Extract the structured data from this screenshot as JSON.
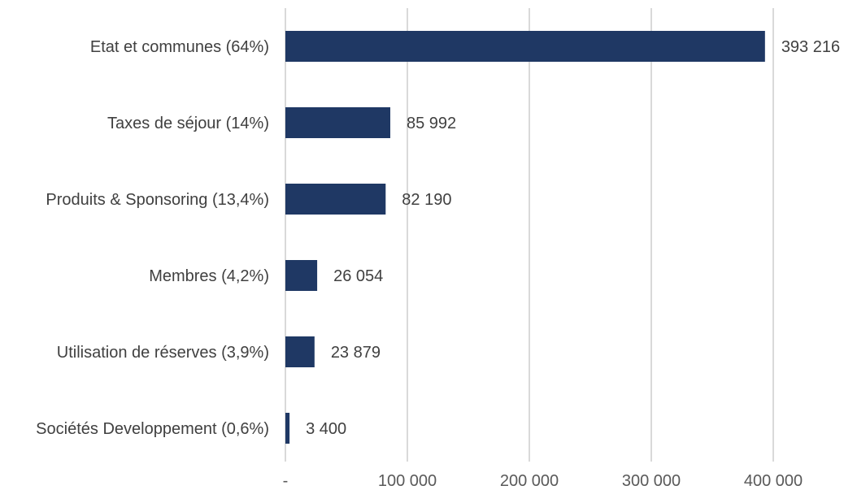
{
  "chart_data": {
    "type": "bar",
    "orientation": "horizontal",
    "categories": [
      "Etat et communes (64%)",
      "Taxes de séjour (14%)",
      "Produits & Sponsoring (13,4%)",
      "Membres (4,2%)",
      "Utilisation de réserves (3,9%)",
      "Sociétés Developpement (0,6%)"
    ],
    "values": [
      393216,
      85992,
      82190,
      26054,
      23879,
      3400
    ],
    "data_labels": [
      "393 216",
      "85 992",
      "82 190",
      "26 054",
      "23 879",
      "3 400"
    ],
    "x_ticks": [
      0,
      100000,
      200000,
      300000,
      400000
    ],
    "x_tick_labels": [
      "-",
      "100 000",
      "200 000",
      "300 000",
      "400 000"
    ],
    "xlim": [
      0,
      400000
    ],
    "grid": true,
    "legend": "none",
    "title": "",
    "xlabel": "",
    "ylabel": "",
    "bar_color": "#1f3864"
  }
}
